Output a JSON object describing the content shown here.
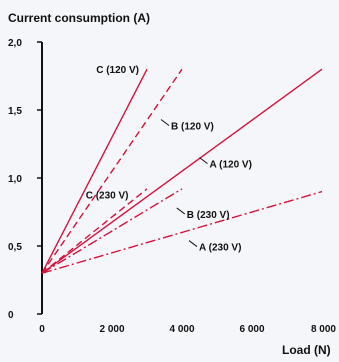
{
  "chart_data": {
    "type": "line",
    "ylabel": "Current consumption (A)",
    "xlabel": "Load (N)",
    "xlim": [
      0,
      8000
    ],
    "ylim": [
      0,
      2.0
    ],
    "x_ticks": [
      {
        "value": 0,
        "label": "0"
      },
      {
        "value": 2000,
        "label": "2 000"
      },
      {
        "value": 4000,
        "label": "4 000"
      },
      {
        "value": 6000,
        "label": "6 000"
      },
      {
        "value": 8000,
        "label": "8 000"
      }
    ],
    "y_ticks": [
      {
        "value": 0,
        "label": "0"
      },
      {
        "value": 0.5,
        "label": "0,5"
      },
      {
        "value": 1.0,
        "label": "1,0"
      },
      {
        "value": 1.5,
        "label": "1,5"
      },
      {
        "value": 2.0,
        "label": "2,0"
      }
    ],
    "grid": false,
    "line_color": "#d6133d",
    "series": [
      {
        "name": "C (120 V)",
        "dash": "solid",
        "x": [
          0,
          3000
        ],
        "y": [
          0.3,
          1.8
        ],
        "label_at": {
          "x": 3000,
          "y": 1.8
        },
        "label_pos": "left"
      },
      {
        "name": "B (120 V)",
        "dash": "dash",
        "x": [
          0,
          4000
        ],
        "y": [
          0.3,
          1.8
        ],
        "label_at": {
          "x": 3400,
          "y": 1.43
        },
        "label_pos": "right"
      },
      {
        "name": "A (120 V)",
        "dash": "solid",
        "x": [
          0,
          8000
        ],
        "y": [
          0.3,
          1.8
        ],
        "label_at": {
          "x": 4500,
          "y": 1.15
        },
        "label_pos": "right"
      },
      {
        "name": "C (230 V)",
        "dash": "dash",
        "x": [
          0,
          3000
        ],
        "y": [
          0.3,
          0.92
        ],
        "label_at": {
          "x": 2700,
          "y": 0.88
        },
        "label_pos": "left"
      },
      {
        "name": "B (230 V)",
        "dash": "dashdot",
        "x": [
          0,
          4000
        ],
        "y": [
          0.3,
          0.92
        ],
        "label_at": {
          "x": 3850,
          "y": 0.78
        },
        "label_pos": "right"
      },
      {
        "name": "A (230 V)",
        "dash": "dashdot",
        "x": [
          0,
          8000
        ],
        "y": [
          0.3,
          0.9
        ],
        "label_at": {
          "x": 4200,
          "y": 0.54
        },
        "label_pos": "right"
      }
    ]
  }
}
